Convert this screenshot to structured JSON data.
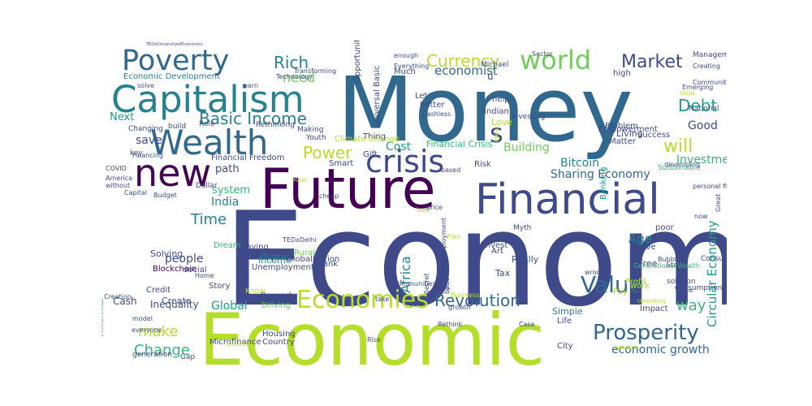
{
  "palette": {
    "dark_purple": "#440154",
    "indigo": "#3e4a89",
    "slate_blue": "#31688e",
    "teal": "#26828e",
    "green_teal": "#1f9e89",
    "green": "#35b779",
    "lime": "#6ece58",
    "yellow_green": "#b5de2b",
    "yellow": "#fde725",
    "background": "#ffffff"
  },
  "words": [
    {
      "text": "Economy",
      "color": "#3e4a89"
    },
    {
      "text": "Money",
      "color": "#31688e"
    },
    {
      "text": "Economic",
      "color": "#b5de2b"
    },
    {
      "text": "Future",
      "color": "#440154"
    },
    {
      "text": "Financial",
      "color": "#3e4a89"
    },
    {
      "text": "Capitalism",
      "color": "#26828e"
    },
    {
      "text": "Poverty",
      "color": "#31688e"
    },
    {
      "text": "Wealth",
      "color": "#31688e"
    },
    {
      "text": "new",
      "color": "#440154"
    },
    {
      "text": "Finance",
      "color": "#1f9e89"
    },
    {
      "text": "crisis",
      "color": "#3e4a89"
    },
    {
      "text": "world",
      "color": "#6ece58"
    },
    {
      "text": "Prosperity",
      "color": "#31688e"
    },
    {
      "text": "Value",
      "color": "#31688e"
    },
    {
      "text": "Economies",
      "color": "#b5de2b"
    },
    {
      "text": "Basic Income",
      "color": "#26828e"
    },
    {
      "text": "Revolution",
      "color": "#31688e"
    },
    {
      "text": "Market",
      "color": "#3e4a89"
    },
    {
      "text": "Debt",
      "color": "#1f9e89"
    },
    {
      "text": "Currency",
      "color": "#b5de2b"
    },
    {
      "text": "Rich",
      "color": "#26828e"
    },
    {
      "text": "s",
      "color": "#3e4a89"
    },
    {
      "text": "will",
      "color": "#b5de2b"
    },
    {
      "text": "Power",
      "color": "#b5de2b"
    },
    {
      "text": "Time",
      "color": "#26828e"
    },
    {
      "text": "Change",
      "color": "#35b779"
    },
    {
      "text": "make",
      "color": "#b5de2b"
    },
    {
      "text": "way",
      "color": "#35b779"
    },
    {
      "text": "Global",
      "color": "#1f9e89"
    },
    {
      "text": "economic growth",
      "color": "#31688e"
    },
    {
      "text": "Circular Economy",
      "color": "#1f9e89"
    },
    {
      "text": "Africa",
      "color": "#26828e"
    },
    {
      "text": "Age",
      "color": "#26828e"
    },
    {
      "text": "Investment",
      "color": "#35b779"
    },
    {
      "text": "Sharing Economy",
      "color": "#31688e"
    },
    {
      "text": "Bitcoin",
      "color": "#26828e"
    },
    {
      "text": "Building",
      "color": "#6ece58"
    },
    {
      "text": "Cost",
      "color": "#1f9e89"
    },
    {
      "text": "need",
      "color": "#6ece58"
    },
    {
      "text": "economist",
      "color": "#31688e"
    },
    {
      "text": "Good",
      "color": "#3e4a89"
    },
    {
      "text": "people",
      "color": "#3e4a89"
    },
    {
      "text": "India",
      "color": "#26828e"
    },
    {
      "text": "system",
      "color": "#35b779"
    },
    {
      "text": "path",
      "color": "#3e4a89"
    },
    {
      "text": "save",
      "color": "#3e4a89"
    },
    {
      "text": "Next",
      "color": "#1f9e89"
    },
    {
      "text": "Financial Crisis",
      "color": "#35b779"
    },
    {
      "text": "Inequality",
      "color": "#3e4a89"
    },
    {
      "text": "Cash",
      "color": "#3e4a89"
    },
    {
      "text": "Create",
      "color": "#3e4a89"
    },
    {
      "text": "Blockchain",
      "color": "#440154"
    },
    {
      "text": "Solving",
      "color": "#3e4a89"
    },
    {
      "text": "Economic Development",
      "color": "#26828e"
    },
    {
      "text": "Financial Freedom",
      "color": "#3e4a89"
    },
    {
      "text": "Digital",
      "color": "#26828e"
    },
    {
      "text": "Income",
      "color": "#26828e"
    },
    {
      "text": "Unemployment",
      "color": "#3e4a89"
    },
    {
      "text": "Saving",
      "color": "#3e4a89"
    },
    {
      "text": "Rural",
      "color": "#6ece58"
    },
    {
      "text": "Bank",
      "color": "#3e4a89"
    },
    {
      "text": "Really",
      "color": "#3e4a89"
    },
    {
      "text": "Tax",
      "color": "#3e4a89"
    },
    {
      "text": "Free",
      "color": "#3e4a89"
    },
    {
      "text": "live",
      "color": "#3e4a89"
    },
    {
      "text": "poor",
      "color": "#3e4a89"
    },
    {
      "text": "Gift",
      "color": "#3e4a89"
    },
    {
      "text": "Thing",
      "color": "#3e4a89"
    },
    {
      "text": "Housing",
      "color": "#3e4a89"
    },
    {
      "text": "Country",
      "color": "#3e4a89"
    },
    {
      "text": "Beyond",
      "color": "#3e4a89"
    },
    {
      "text": "Driving",
      "color": "#6ece58"
    },
    {
      "text": "Simple",
      "color": "#26828e"
    },
    {
      "text": "Life",
      "color": "#3e4a89"
    },
    {
      "text": "Pay",
      "color": "#b5de2b"
    },
    {
      "text": "Impact",
      "color": "#3e4a89"
    },
    {
      "text": "Story",
      "color": "#3e4a89"
    },
    {
      "text": "social",
      "color": "#3e4a89"
    },
    {
      "text": "Dream",
      "color": "#35b779"
    },
    {
      "text": "work",
      "color": "#b5de2b"
    },
    {
      "text": "Profit",
      "color": "#b5de2b"
    },
    {
      "text": "Living",
      "color": "#3e4a89"
    },
    {
      "text": "Problem",
      "color": "#3e4a89"
    },
    {
      "text": "Matter",
      "color": "#3e4a89"
    },
    {
      "text": "Banking",
      "color": "#1f9e89"
    },
    {
      "text": "Empowerment",
      "color": "#3e4a89"
    },
    {
      "text": "Love",
      "color": "#b5de2b"
    },
    {
      "text": "help",
      "color": "#3e4a89"
    },
    {
      "text": "Indian",
      "color": "#3e4a89"
    },
    {
      "text": "Let",
      "color": "#3e4a89"
    },
    {
      "text": "better",
      "color": "#3e4a89"
    },
    {
      "text": "Cashless",
      "color": "#3e4a89"
    },
    {
      "text": "Much",
      "color": "#3e4a89"
    },
    {
      "text": "u",
      "color": "#3e4a89"
    },
    {
      "text": "Michael",
      "color": "#3e4a89"
    },
    {
      "text": "enough",
      "color": "#3e4a89"
    },
    {
      "text": "Everything",
      "color": "#3e4a89"
    },
    {
      "text": "Making",
      "color": "#3e4a89"
    },
    {
      "text": "Youth",
      "color": "#3e4a89"
    },
    {
      "text": "Rethinking",
      "color": "#3e4a89"
    },
    {
      "text": "Role",
      "color": "#3e4a89"
    },
    {
      "text": "build",
      "color": "#3e4a89"
    },
    {
      "text": "Changing",
      "color": "#3e4a89"
    },
    {
      "text": "key",
      "color": "#3e4a89"
    },
    {
      "text": "Capital",
      "color": "#3e4a89"
    },
    {
      "text": "COVID",
      "color": "#3e4a89"
    },
    {
      "text": "America",
      "color": "#3e4a89"
    },
    {
      "text": "without",
      "color": "#3e4a89"
    },
    {
      "text": "Financing",
      "color": "#3e4a89"
    },
    {
      "text": "solve",
      "color": "#3e4a89"
    },
    {
      "text": "earn",
      "color": "#3e4a89"
    },
    {
      "text": "Technology",
      "color": "#3e4a89"
    },
    {
      "text": "Transforming",
      "color": "#3e4a89"
    },
    {
      "text": "high",
      "color": "#3e4a89"
    },
    {
      "text": "Emerging",
      "color": "#3e4a89"
    },
    {
      "text": "Community",
      "color": "#3e4a89"
    },
    {
      "text": "local",
      "color": "#b5de2b"
    },
    {
      "text": "National",
      "color": "#3e4a89"
    },
    {
      "text": "Success",
      "color": "#3e4a89"
    },
    {
      "text": "Management",
      "color": "#3e4a89"
    },
    {
      "text": "Creating",
      "color": "#3e4a89"
    },
    {
      "text": "Sector",
      "color": "#3e4a89"
    },
    {
      "text": "Sustainable",
      "color": "#35b779"
    },
    {
      "text": "developing",
      "color": "#3e4a89"
    },
    {
      "text": "personal finance",
      "color": "#3e4a89"
    },
    {
      "text": "Great",
      "color": "#3e4a89"
    },
    {
      "text": "Consumerism",
      "color": "#3e4a89"
    },
    {
      "text": "solution",
      "color": "#3e4a89"
    },
    {
      "text": "consumption",
      "color": "#3e4a89"
    },
    {
      "text": "think",
      "color": "#3e4a89"
    },
    {
      "text": "Steps",
      "color": "#3e4a89"
    },
    {
      "text": "Case",
      "color": "#3e4a89"
    },
    {
      "text": "Rethink",
      "color": "#3e4a89"
    },
    {
      "text": "Rise",
      "color": "#3e4a89"
    },
    {
      "text": "City",
      "color": "#3e4a89"
    },
    {
      "text": "Gap",
      "color": "#3e4a89"
    },
    {
      "text": "everyone",
      "color": "#3e4a89"
    },
    {
      "text": "model",
      "color": "#3e4a89"
    },
    {
      "text": "Microfinance",
      "color": "#3e4a89"
    },
    {
      "text": "generation",
      "color": "#3e4a89"
    },
    {
      "text": "Credit",
      "color": "#3e4a89"
    },
    {
      "text": "Creation",
      "color": "#3e4a89"
    },
    {
      "text": "Home",
      "color": "#3e4a89"
    },
    {
      "text": "Know",
      "color": "#b5de2b"
    },
    {
      "text": "Globalization",
      "color": "#3e4a89"
    },
    {
      "text": "Youth Unemployment",
      "color": "#3e4a89"
    },
    {
      "text": "Secret",
      "color": "#3e4a89"
    },
    {
      "text": "invest",
      "color": "#3e4a89"
    },
    {
      "text": "Art",
      "color": "#3e4a89"
    },
    {
      "text": "Myth",
      "color": "#3e4a89"
    },
    {
      "text": "wrong",
      "color": "#3e4a89"
    },
    {
      "text": "Generational Wealth",
      "color": "#35b779"
    },
    {
      "text": "Millennial",
      "color": "#35b779"
    },
    {
      "text": "Dollar",
      "color": "#3e4a89"
    },
    {
      "text": "Budget",
      "color": "#3e4a89"
    },
    {
      "text": "Opportunities",
      "color": "#3e4a89"
    },
    {
      "text": "Universal Basic",
      "color": "#3e4a89"
    },
    {
      "text": "Climate Change",
      "color": "#b5de2b"
    },
    {
      "text": "Idea",
      "color": "#b5de2b"
    },
    {
      "text": "Investing",
      "color": "#3e4a89"
    },
    {
      "text": "Smart",
      "color": "#3e4a89"
    },
    {
      "text": "Risk",
      "color": "#3e4a89"
    },
    {
      "text": "based",
      "color": "#3e4a89"
    },
    {
      "text": "now",
      "color": "#3e4a89"
    },
    {
      "text": "Bubble",
      "color": "#3e4a89"
    },
    {
      "text": "Unlocking",
      "color": "#b5de2b"
    },
    {
      "text": "travel",
      "color": "#b5de2b"
    },
    {
      "text": "Society",
      "color": "#b5de2b"
    },
    {
      "text": "Lesson",
      "color": "#b5de2b"
    },
    {
      "text": "communities",
      "color": "#3e4a89"
    },
    {
      "text": "take",
      "color": "#3e4a89"
    },
    {
      "text": "growth",
      "color": "#3e4a89"
    },
    {
      "text": "Business",
      "color": "#b5de2b"
    },
    {
      "text": "back",
      "color": "#3e4a89"
    },
    {
      "text": "grow",
      "color": "#3e4a89"
    },
    {
      "text": "Plan",
      "color": "#b5de2b"
    },
    {
      "text": "lead",
      "color": "#b5de2b"
    },
    {
      "text": "price",
      "color": "#3e4a89"
    },
    {
      "text": "cheap",
      "color": "#3e4a89"
    },
    {
      "text": "Real",
      "color": "#b5de2b"
    },
    {
      "text": "TEDxDelhi",
      "color": "#3e4a89"
    },
    {
      "text": "TEDxUniversityofEconomics",
      "color": "#3e4a89"
    }
  ]
}
